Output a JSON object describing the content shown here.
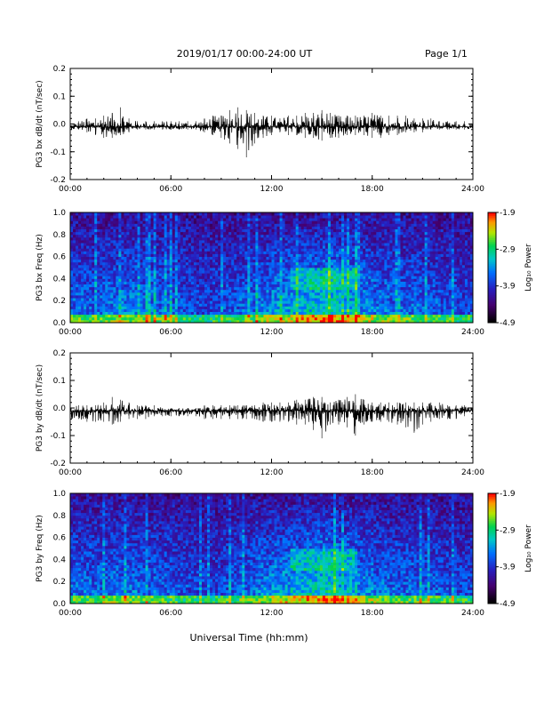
{
  "header": {
    "title": "2019/01/17  00:00-24:00 UT",
    "page": "Page 1/1"
  },
  "xlabel": "Universal Time (hh:mm)",
  "colors": {
    "trace": "#000000",
    "background": "#ffffff"
  },
  "chart_data": [
    {
      "type": "line",
      "ylabel": "PG3 bx dB/dt (nT/sec)",
      "xlim": [
        0,
        24
      ],
      "ylim": [
        -0.2,
        0.2
      ],
      "x_ticks": [
        "00:00",
        "06:00",
        "12:00",
        "18:00",
        "24:00"
      ],
      "y_ticks": [
        "0.2",
        "0.1",
        "0.0",
        "-0.1",
        "-0.2"
      ],
      "series": [
        {
          "x": [
            0,
            0.5,
            1,
            1.5,
            2,
            2.5,
            3,
            3.5,
            4,
            4.5,
            5,
            5.5,
            6,
            6.5,
            7,
            7.5,
            8,
            8.5,
            9,
            9.5,
            10,
            10.5,
            11,
            11.5,
            12,
            12.5,
            13,
            13.5,
            14,
            14.5,
            15,
            15.5,
            16,
            16.5,
            17,
            17.5,
            18,
            18.5,
            19,
            19.5,
            20,
            20.5,
            21,
            21.5,
            22,
            22.5,
            23,
            23.5,
            24
          ],
          "y_max": [
            0.0,
            0.01,
            0.02,
            0.02,
            0.03,
            0.04,
            0.06,
            0.02,
            0.01,
            0.01,
            0.01,
            0.01,
            0.01,
            0.01,
            0.01,
            0.01,
            0.02,
            0.03,
            0.03,
            0.05,
            0.06,
            0.05,
            0.04,
            0.03,
            0.03,
            0.02,
            0.03,
            0.03,
            0.04,
            0.04,
            0.05,
            0.04,
            0.03,
            0.03,
            0.03,
            0.03,
            0.04,
            0.03,
            0.03,
            0.03,
            0.03,
            0.02,
            0.02,
            0.02,
            0.01,
            0.01,
            0.01,
            0.01,
            0.0
          ],
          "y_min": [
            -0.02,
            -0.02,
            -0.03,
            -0.04,
            -0.05,
            -0.05,
            -0.04,
            -0.03,
            -0.02,
            -0.02,
            -0.02,
            -0.02,
            -0.02,
            -0.02,
            -0.02,
            -0.02,
            -0.03,
            -0.04,
            -0.05,
            -0.07,
            -0.09,
            -0.12,
            -0.07,
            -0.05,
            -0.04,
            -0.03,
            -0.04,
            -0.04,
            -0.05,
            -0.05,
            -0.06,
            -0.05,
            -0.05,
            -0.04,
            -0.04,
            -0.04,
            -0.05,
            -0.05,
            -0.04,
            -0.04,
            -0.03,
            -0.03,
            -0.03,
            -0.02,
            -0.02,
            -0.02,
            -0.02,
            -0.02,
            -0.02
          ]
        }
      ]
    },
    {
      "type": "heatmap",
      "ylabel": "PG3 bx Freq (Hz)",
      "colorbar_label": "Log₁₀ Power",
      "xlim": [
        0,
        24
      ],
      "ylim": [
        0,
        1
      ],
      "x_ticks": [
        "00:00",
        "06:00",
        "12:00",
        "18:00",
        "24:00"
      ],
      "y_ticks": [
        "1.0",
        "0.8",
        "0.6",
        "0.4",
        "0.2",
        "0.0"
      ],
      "color_range": [
        -4.9,
        -1.9
      ],
      "colorbar_ticks": [
        "-1.9",
        "-2.9",
        "-3.9",
        "-4.9"
      ],
      "hour_activity": [
        0.5,
        0.5,
        0.55,
        0.6,
        0.55,
        0.5,
        0.4,
        0.35,
        0.35,
        0.4,
        0.5,
        0.6,
        0.7,
        0.78,
        0.85,
        0.95,
        0.8,
        0.65,
        0.55,
        0.5,
        0.5,
        0.45,
        0.4,
        0.35
      ]
    },
    {
      "type": "line",
      "ylabel": "PG3 by dB/dt (nT/sec)",
      "xlim": [
        0,
        24
      ],
      "ylim": [
        -0.2,
        0.2
      ],
      "x_ticks": [
        "00:00",
        "06:00",
        "12:00",
        "18:00",
        "24:00"
      ],
      "y_ticks": [
        "0.2",
        "0.1",
        "0.0",
        "-0.1",
        "-0.2"
      ],
      "series": [
        {
          "x": [
            0,
            0.5,
            1,
            1.5,
            2,
            2.5,
            3,
            3.5,
            4,
            4.5,
            5,
            5.5,
            6,
            6.5,
            7,
            7.5,
            8,
            8.5,
            9,
            9.5,
            10,
            10.5,
            11,
            11.5,
            12,
            12.5,
            13,
            13.5,
            14,
            14.5,
            15,
            15.5,
            16,
            16.5,
            17,
            17.5,
            18,
            18.5,
            19,
            19.5,
            20,
            20.5,
            21,
            21.5,
            22,
            22.5,
            23,
            23.5,
            24
          ],
          "y_max": [
            0.0,
            0.01,
            0.01,
            0.01,
            0.02,
            0.04,
            0.03,
            0.02,
            0.01,
            0.01,
            0.01,
            0.0,
            0.0,
            0.0,
            0.0,
            0.0,
            0.01,
            0.01,
            0.01,
            0.01,
            0.01,
            0.01,
            0.01,
            0.02,
            0.02,
            0.02,
            0.02,
            0.03,
            0.03,
            0.04,
            0.04,
            0.02,
            0.03,
            0.04,
            0.05,
            0.03,
            0.02,
            0.02,
            0.02,
            0.02,
            0.02,
            0.02,
            0.02,
            0.02,
            0.02,
            0.01,
            0.01,
            0.01,
            0.0
          ],
          "y_min": [
            -0.04,
            -0.04,
            -0.05,
            -0.05,
            -0.05,
            -0.06,
            -0.05,
            -0.04,
            -0.04,
            -0.04,
            -0.03,
            -0.03,
            -0.03,
            -0.03,
            -0.03,
            -0.03,
            -0.04,
            -0.04,
            -0.04,
            -0.04,
            -0.04,
            -0.04,
            -0.04,
            -0.05,
            -0.05,
            -0.05,
            -0.05,
            -0.06,
            -0.06,
            -0.08,
            -0.11,
            -0.06,
            -0.06,
            -0.07,
            -0.1,
            -0.06,
            -0.05,
            -0.05,
            -0.05,
            -0.06,
            -0.07,
            -0.09,
            -0.06,
            -0.05,
            -0.04,
            -0.04,
            -0.04,
            -0.03,
            -0.03
          ]
        }
      ]
    },
    {
      "type": "heatmap",
      "ylabel": "PG3 by Freq (Hz)",
      "colorbar_label": "Log₁₀ Power",
      "xlim": [
        0,
        24
      ],
      "ylim": [
        0,
        1
      ],
      "x_ticks": [
        "00:00",
        "06:00",
        "12:00",
        "18:00",
        "24:00"
      ],
      "y_ticks": [
        "1.0",
        "0.8",
        "0.6",
        "0.4",
        "0.2",
        "0.0"
      ],
      "color_range": [
        -4.9,
        -1.9
      ],
      "colorbar_ticks": [
        "-1.9",
        "-2.9",
        "-3.9",
        "-4.9"
      ],
      "hour_activity": [
        0.5,
        0.5,
        0.55,
        0.55,
        0.5,
        0.45,
        0.4,
        0.35,
        0.35,
        0.4,
        0.5,
        0.6,
        0.72,
        0.8,
        0.88,
        0.95,
        0.78,
        0.62,
        0.55,
        0.5,
        0.5,
        0.45,
        0.4,
        0.35
      ]
    }
  ]
}
